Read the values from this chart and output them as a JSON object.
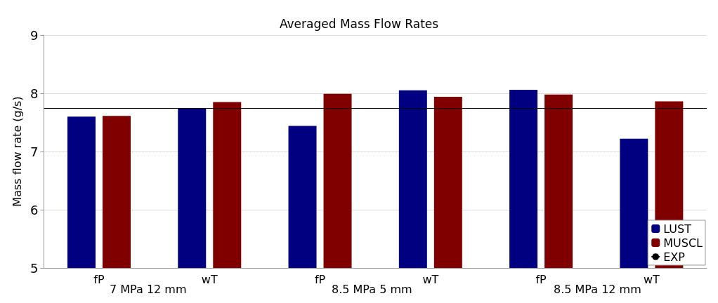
{
  "chart_data": {
    "type": "bar",
    "title": "Averaged Mass Flow Rates",
    "ylabel": "Mass flow rate (g/s)",
    "categories": [
      "fP",
      "wT",
      "fP",
      "wT",
      "fP",
      "wT"
    ],
    "series": [
      {
        "name": "LUST",
        "color": "#000080",
        "values": [
          7.6,
          7.74,
          7.44,
          8.05,
          8.06,
          7.22
        ]
      },
      {
        "name": "MUSCL",
        "color": "#800000",
        "values": [
          7.61,
          7.85,
          7.99,
          7.94,
          7.98,
          7.86
        ]
      }
    ],
    "ref_lines": [
      {
        "axis": "y",
        "value": 7.74,
        "label": "EXP",
        "color": "#000000"
      }
    ],
    "annotations": [
      "7 MPa 12 mm",
      "8.5 MPa 5 mm",
      "8.5 MPa 12 mm"
    ],
    "ylim": [
      5,
      9
    ],
    "yticks": [
      5,
      6,
      7,
      8,
      9
    ],
    "grid": "y",
    "legend": "bottom right"
  }
}
